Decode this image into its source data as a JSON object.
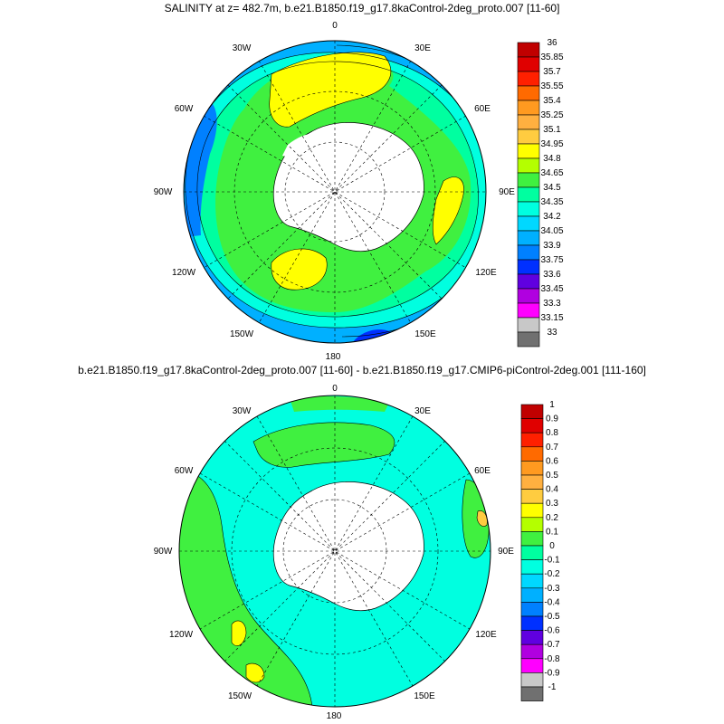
{
  "panels": [
    {
      "title": "SALINITY at z= 482.7m, b.e21.B1850.f19_g17.8kaControl-2deg_proto.007 [11-60]",
      "lon_labels": [
        "0",
        "30E",
        "60E",
        "90E",
        "120E",
        "150E",
        "180",
        "150W",
        "120W",
        "90W",
        "60W",
        "30W"
      ],
      "colorbar": {
        "levels": [
          "36",
          "35.85",
          "35.7",
          "35.55",
          "35.4",
          "35.25",
          "35.1",
          "34.95",
          "34.8",
          "34.65",
          "34.5",
          "34.35",
          "34.2",
          "34.05",
          "33.9",
          "33.75",
          "33.6",
          "33.45",
          "33.3",
          "33.15",
          "33"
        ],
        "colors": [
          "#c00000",
          "#e00000",
          "#ff2000",
          "#ff6a00",
          "#ff9a20",
          "#ffb040",
          "#ffcc40",
          "#ffff00",
          "#b4ff00",
          "#40f040",
          "#00ffa0",
          "#00ffe0",
          "#00d8ff",
          "#00b0ff",
          "#0080ff",
          "#0030ff",
          "#6000e0",
          "#b000e0",
          "#ff00ff",
          "#c8c8c8",
          "#707070"
        ]
      }
    },
    {
      "title": "b.e21.B1850.f19_g17.8kaControl-2deg_proto.007 [11-60] - b.e21.B1850.f19_g17.CMIP6-piControl-2deg.001 [111-160]",
      "lon_labels": [
        "0",
        "30E",
        "60E",
        "90E",
        "120E",
        "150E",
        "180",
        "150W",
        "120W",
        "90W",
        "60W",
        "30W"
      ],
      "colorbar": {
        "levels": [
          "1",
          "0.9",
          "0.8",
          "0.7",
          "0.6",
          "0.5",
          "0.4",
          "0.3",
          "0.2",
          "0.1",
          "0",
          "-0.1",
          "-0.2",
          "-0.3",
          "-0.4",
          "-0.5",
          "-0.6",
          "-0.7",
          "-0.8",
          "-0.9",
          "-1"
        ],
        "colors": [
          "#c00000",
          "#e00000",
          "#ff2000",
          "#ff6a00",
          "#ff9a20",
          "#ffb040",
          "#ffcc40",
          "#ffff00",
          "#b4ff00",
          "#40f040",
          "#00ffa0",
          "#00ffe0",
          "#00d8ff",
          "#00b0ff",
          "#0080ff",
          "#0030ff",
          "#6000e0",
          "#b000e0",
          "#ff00ff",
          "#c8c8c8",
          "#707070"
        ]
      }
    }
  ]
}
